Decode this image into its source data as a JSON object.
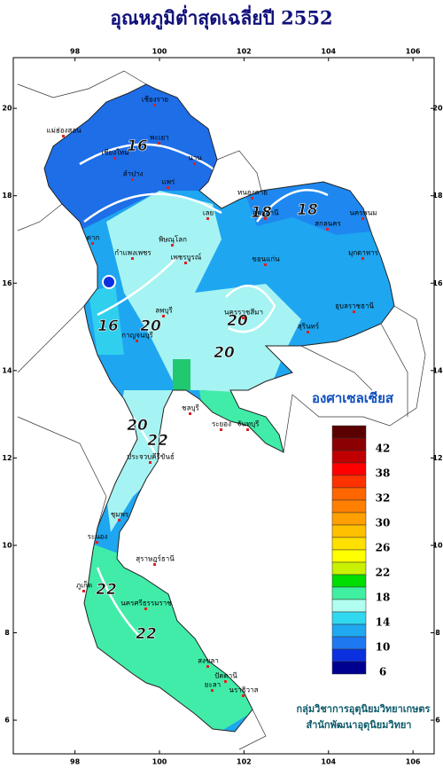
{
  "map_data": {
    "title": "อุณหภูมิต่ำสุดเฉลี่ยปี 2552",
    "lonlim": [
      96.54,
      106.5
    ],
    "latlim": [
      5.23,
      21.16
    ],
    "lonticks": [
      98,
      100,
      102,
      104,
      106
    ],
    "latticks": [
      6,
      8,
      10,
      12,
      14,
      16,
      18,
      20
    ],
    "legend": {
      "title": "องศาเซลเซียส",
      "colors": [
        "#5a0000",
        "#8b0000",
        "#c00000",
        "#ff0000",
        "#ff3300",
        "#ff6600",
        "#ff8000",
        "#ffa000",
        "#ffc000",
        "#ffe000",
        "#ffff00",
        "#c8f000",
        "#00dd00",
        "#40f0a0",
        "#b0fff0",
        "#30d8f0",
        "#20a8f0",
        "#1e78f0",
        "#0a30e0",
        "#000090"
      ],
      "labels": [
        6,
        10,
        14,
        18,
        22,
        26,
        30,
        32,
        38,
        42
      ]
    },
    "contour_labels": [
      16,
      18,
      18,
      16,
      20,
      20,
      20,
      20,
      22,
      22,
      22
    ],
    "places": [
      "เชียงราย",
      "แม่ฮ่องสอน",
      "เชียงใหม่",
      "พะเยา",
      "น่าน",
      "ลำปาง",
      "แพร่",
      "ตาก",
      "พิษณุโลก",
      "กำแพงเพชร",
      "เพชรบูรณ์",
      "เลย",
      "หนองคาย",
      "อุดรธานี",
      "นครพนม",
      "สกลนคร",
      "มุกดาหาร",
      "ขอนแก่น",
      "อุบลราชธานี",
      "สุรินทร์",
      "นครราชสีมา",
      "ลพบุรี",
      "กาญจนบุรี",
      "ชลบุรี",
      "ระยอง",
      "จันทบุรี",
      "ประจวบคีรีขันธ์",
      "ชุมพร",
      "ระนอง",
      "สุราษฎร์ธานี",
      "ภูเก็ต",
      "นครศรีธรรมราช",
      "สงขลา",
      "ปัตตานี",
      "นราธิวาส",
      "ยะลา"
    ],
    "credits": [
      "กลุ่มวิชาการอุตุนิยมวิทยาเกษตร",
      "สำนักพัฒนาอุตุนิยมวิทยา"
    ]
  }
}
